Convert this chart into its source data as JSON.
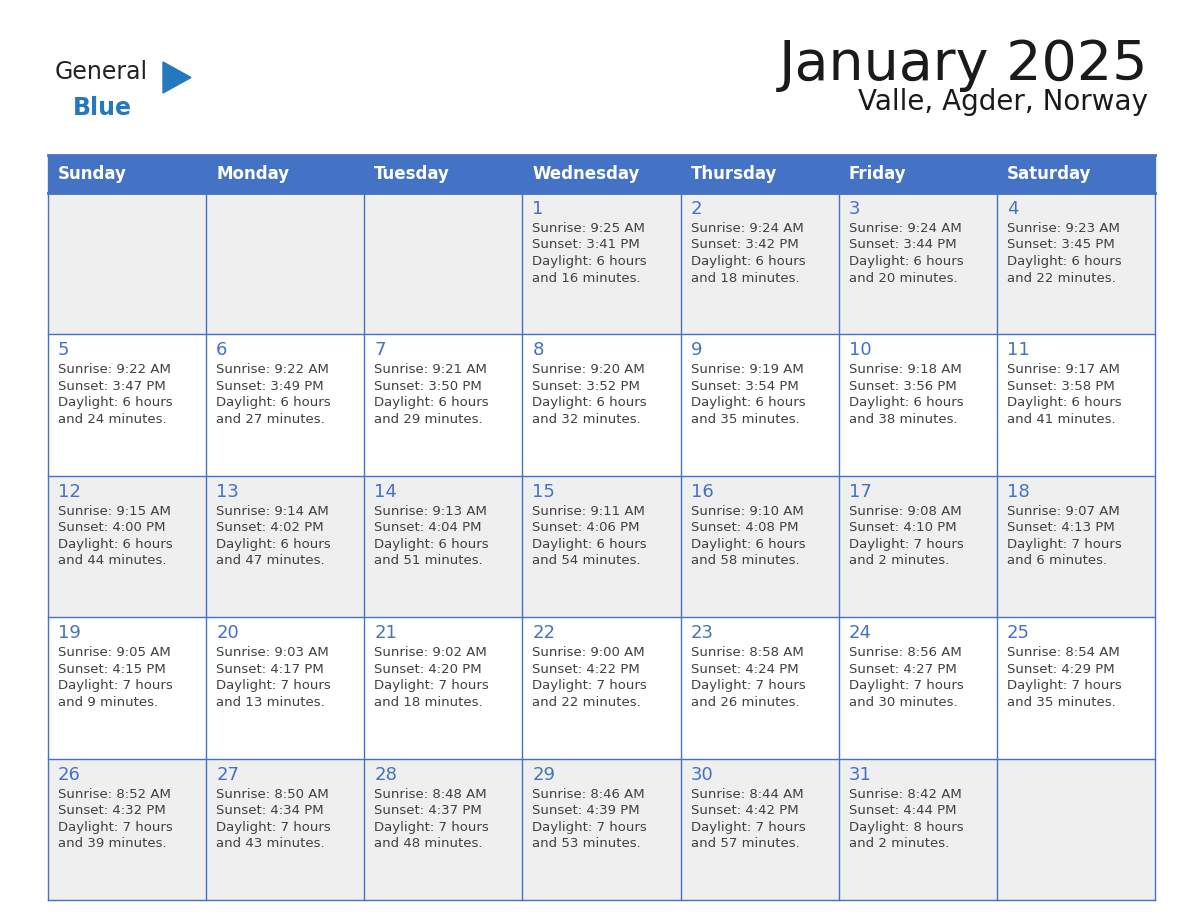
{
  "title": "January 2025",
  "subtitle": "Valle, Agder, Norway",
  "header_bg_color": "#4472C4",
  "header_text_color": "#FFFFFF",
  "cell_border_color": "#4472C4",
  "cell_border_color_light": "#A0A0A0",
  "day_number_color": "#4472C4",
  "body_text_color": "#404040",
  "bg_color": "#FFFFFF",
  "cell_bg_even": "#EFEFEF",
  "cell_bg_odd": "#FFFFFF",
  "weekdays": [
    "Sunday",
    "Monday",
    "Tuesday",
    "Wednesday",
    "Thursday",
    "Friday",
    "Saturday"
  ],
  "days": [
    {
      "day": 1,
      "col": 3,
      "row": 0,
      "sunrise": "9:25 AM",
      "sunset": "3:41 PM",
      "daylight": "6 hours and 16 minutes."
    },
    {
      "day": 2,
      "col": 4,
      "row": 0,
      "sunrise": "9:24 AM",
      "sunset": "3:42 PM",
      "daylight": "6 hours and 18 minutes."
    },
    {
      "day": 3,
      "col": 5,
      "row": 0,
      "sunrise": "9:24 AM",
      "sunset": "3:44 PM",
      "daylight": "6 hours and 20 minutes."
    },
    {
      "day": 4,
      "col": 6,
      "row": 0,
      "sunrise": "9:23 AM",
      "sunset": "3:45 PM",
      "daylight": "6 hours and 22 minutes."
    },
    {
      "day": 5,
      "col": 0,
      "row": 1,
      "sunrise": "9:22 AM",
      "sunset": "3:47 PM",
      "daylight": "6 hours and 24 minutes."
    },
    {
      "day": 6,
      "col": 1,
      "row": 1,
      "sunrise": "9:22 AM",
      "sunset": "3:49 PM",
      "daylight": "6 hours and 27 minutes."
    },
    {
      "day": 7,
      "col": 2,
      "row": 1,
      "sunrise": "9:21 AM",
      "sunset": "3:50 PM",
      "daylight": "6 hours and 29 minutes."
    },
    {
      "day": 8,
      "col": 3,
      "row": 1,
      "sunrise": "9:20 AM",
      "sunset": "3:52 PM",
      "daylight": "6 hours and 32 minutes."
    },
    {
      "day": 9,
      "col": 4,
      "row": 1,
      "sunrise": "9:19 AM",
      "sunset": "3:54 PM",
      "daylight": "6 hours and 35 minutes."
    },
    {
      "day": 10,
      "col": 5,
      "row": 1,
      "sunrise": "9:18 AM",
      "sunset": "3:56 PM",
      "daylight": "6 hours and 38 minutes."
    },
    {
      "day": 11,
      "col": 6,
      "row": 1,
      "sunrise": "9:17 AM",
      "sunset": "3:58 PM",
      "daylight": "6 hours and 41 minutes."
    },
    {
      "day": 12,
      "col": 0,
      "row": 2,
      "sunrise": "9:15 AM",
      "sunset": "4:00 PM",
      "daylight": "6 hours and 44 minutes."
    },
    {
      "day": 13,
      "col": 1,
      "row": 2,
      "sunrise": "9:14 AM",
      "sunset": "4:02 PM",
      "daylight": "6 hours and 47 minutes."
    },
    {
      "day": 14,
      "col": 2,
      "row": 2,
      "sunrise": "9:13 AM",
      "sunset": "4:04 PM",
      "daylight": "6 hours and 51 minutes."
    },
    {
      "day": 15,
      "col": 3,
      "row": 2,
      "sunrise": "9:11 AM",
      "sunset": "4:06 PM",
      "daylight": "6 hours and 54 minutes."
    },
    {
      "day": 16,
      "col": 4,
      "row": 2,
      "sunrise": "9:10 AM",
      "sunset": "4:08 PM",
      "daylight": "6 hours and 58 minutes."
    },
    {
      "day": 17,
      "col": 5,
      "row": 2,
      "sunrise": "9:08 AM",
      "sunset": "4:10 PM",
      "daylight": "7 hours and 2 minutes."
    },
    {
      "day": 18,
      "col": 6,
      "row": 2,
      "sunrise": "9:07 AM",
      "sunset": "4:13 PM",
      "daylight": "7 hours and 6 minutes."
    },
    {
      "day": 19,
      "col": 0,
      "row": 3,
      "sunrise": "9:05 AM",
      "sunset": "4:15 PM",
      "daylight": "7 hours and 9 minutes."
    },
    {
      "day": 20,
      "col": 1,
      "row": 3,
      "sunrise": "9:03 AM",
      "sunset": "4:17 PM",
      "daylight": "7 hours and 13 minutes."
    },
    {
      "day": 21,
      "col": 2,
      "row": 3,
      "sunrise": "9:02 AM",
      "sunset": "4:20 PM",
      "daylight": "7 hours and 18 minutes."
    },
    {
      "day": 22,
      "col": 3,
      "row": 3,
      "sunrise": "9:00 AM",
      "sunset": "4:22 PM",
      "daylight": "7 hours and 22 minutes."
    },
    {
      "day": 23,
      "col": 4,
      "row": 3,
      "sunrise": "8:58 AM",
      "sunset": "4:24 PM",
      "daylight": "7 hours and 26 minutes."
    },
    {
      "day": 24,
      "col": 5,
      "row": 3,
      "sunrise": "8:56 AM",
      "sunset": "4:27 PM",
      "daylight": "7 hours and 30 minutes."
    },
    {
      "day": 25,
      "col": 6,
      "row": 3,
      "sunrise": "8:54 AM",
      "sunset": "4:29 PM",
      "daylight": "7 hours and 35 minutes."
    },
    {
      "day": 26,
      "col": 0,
      "row": 4,
      "sunrise": "8:52 AM",
      "sunset": "4:32 PM",
      "daylight": "7 hours and 39 minutes."
    },
    {
      "day": 27,
      "col": 1,
      "row": 4,
      "sunrise": "8:50 AM",
      "sunset": "4:34 PM",
      "daylight": "7 hours and 43 minutes."
    },
    {
      "day": 28,
      "col": 2,
      "row": 4,
      "sunrise": "8:48 AM",
      "sunset": "4:37 PM",
      "daylight": "7 hours and 48 minutes."
    },
    {
      "day": 29,
      "col": 3,
      "row": 4,
      "sunrise": "8:46 AM",
      "sunset": "4:39 PM",
      "daylight": "7 hours and 53 minutes."
    },
    {
      "day": 30,
      "col": 4,
      "row": 4,
      "sunrise": "8:44 AM",
      "sunset": "4:42 PM",
      "daylight": "7 hours and 57 minutes."
    },
    {
      "day": 31,
      "col": 5,
      "row": 4,
      "sunrise": "8:42 AM",
      "sunset": "4:44 PM",
      "daylight": "8 hours and 2 minutes."
    }
  ],
  "num_rows": 5,
  "num_cols": 7,
  "logo_text_general": "General",
  "logo_text_blue": "Blue",
  "logo_general_color": "#222222",
  "logo_blue_color": "#2479BD",
  "logo_triangle_color": "#2479BD"
}
